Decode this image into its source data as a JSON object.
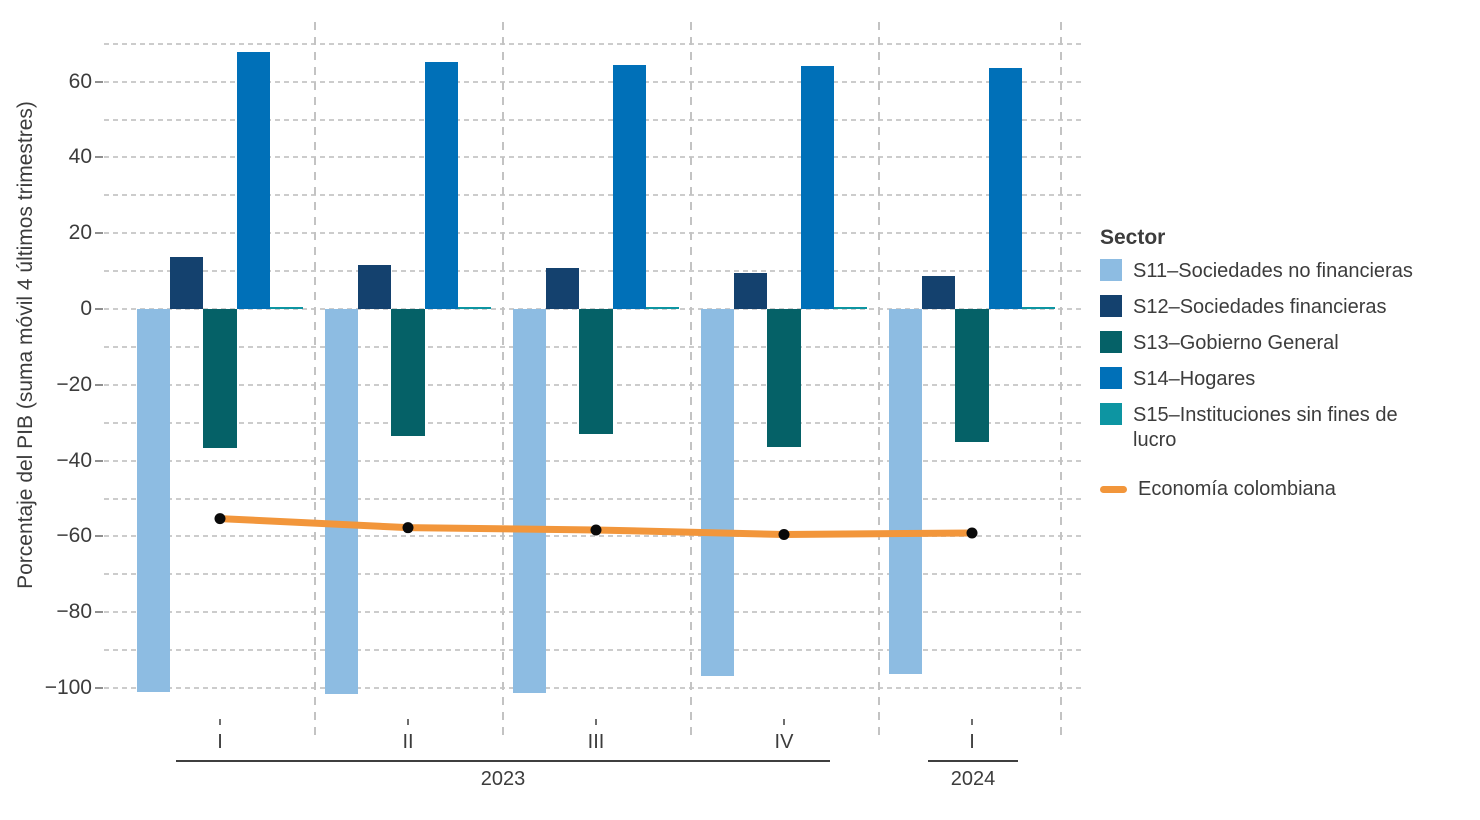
{
  "chart_data": {
    "type": "bar",
    "title": "",
    "ylabel": "Porcentaje del PIB (suma móvil 4 últimos trimestres)",
    "ylim": [
      -110,
      72
    ],
    "grid": true,
    "grid_step": 10,
    "gridline_range": [
      -100,
      70
    ],
    "legend_position": "right",
    "legend_title": "Sector",
    "yticks": [
      {
        "value": 60,
        "label": "60"
      },
      {
        "value": 40,
        "label": "40"
      },
      {
        "value": 20,
        "label": "20"
      },
      {
        "value": 0,
        "label": "0"
      },
      {
        "value": -20,
        "label": "−20"
      },
      {
        "value": -40,
        "label": "−40"
      },
      {
        "value": -60,
        "label": "−60"
      },
      {
        "value": -80,
        "label": "−80"
      },
      {
        "value": -100,
        "label": "−100"
      }
    ],
    "categories": [
      "I",
      "II",
      "III",
      "IV",
      "I"
    ],
    "year_groups": [
      {
        "label": "2023",
        "from": 0,
        "to": 3
      },
      {
        "label": "2024",
        "from": 4,
        "to": 4
      }
    ],
    "series": [
      {
        "id": "S11",
        "name": "S11–Sociedades no financieras",
        "color": "#8dbce2",
        "values": [
          -101.0,
          -101.6,
          -101.3,
          -96.8,
          -96.4
        ]
      },
      {
        "id": "S12",
        "name": "S12–Sociedades financieras",
        "color": "#14416e",
        "values": [
          13.6,
          11.5,
          10.7,
          9.4,
          8.8
        ]
      },
      {
        "id": "S13",
        "name": "S13–Gobierno General",
        "color": "#056167",
        "values": [
          -36.6,
          -33.4,
          -32.9,
          -36.3,
          -35.1
        ]
      },
      {
        "id": "S14",
        "name": "S14–Hogares",
        "color": "#0070b8",
        "values": [
          67.7,
          65.2,
          64.4,
          64.2,
          63.7
        ]
      },
      {
        "id": "S15",
        "name": "S15–Instituciones sin fines de lucro",
        "color": "#0d95a2",
        "values": [
          0.4,
          0.4,
          0.4,
          0.4,
          0.4
        ]
      }
    ],
    "line_series": {
      "name": "Economía colombiana",
      "color": "#f2963b",
      "marker_color": "#0a0a0a",
      "values": [
        -55.3,
        -57.7,
        -58.3,
        -59.5,
        -59.1
      ]
    },
    "colors": {
      "grid": "#cccccc",
      "separator": "#c3c3c3",
      "text": "#3c3c3c"
    }
  }
}
